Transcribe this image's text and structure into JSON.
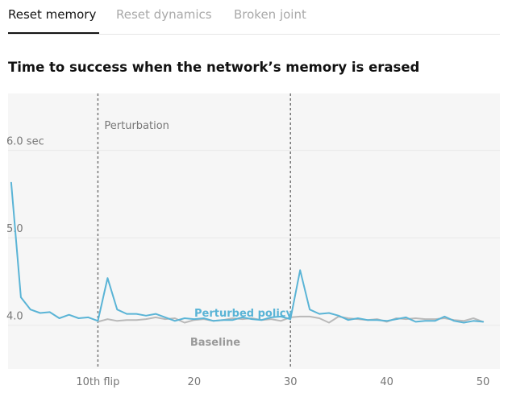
{
  "tabs": [
    {
      "label": "Reset memory",
      "active": true
    },
    {
      "label": "Reset dynamics",
      "active": false
    },
    {
      "label": "Broken joint",
      "active": false
    }
  ],
  "colors": {
    "policy": "#5ab4d6",
    "baseline": "#b9b9b9",
    "grid": "#e9e9e9",
    "plot_bg": "#f6f6f6",
    "marker": "#777777",
    "tick_text": "#777777"
  },
  "chart_data": {
    "type": "line",
    "title": "Time to success when the network’s memory is erased",
    "xlabel": "",
    "ylabel": "",
    "xlim": [
      0,
      51
    ],
    "ylim": [
      3.5,
      6.65
    ],
    "y_ticks": [
      {
        "value": 6.0,
        "label": "6.0 sec"
      },
      {
        "value": 5.0,
        "label": "5.0"
      },
      {
        "value": 4.0,
        "label": "4.0"
      }
    ],
    "x_ticks": [
      {
        "value": 10,
        "label": "10th flip"
      },
      {
        "value": 20,
        "label": "20"
      },
      {
        "value": 30,
        "label": "30"
      },
      {
        "value": 40,
        "label": "40"
      },
      {
        "value": 50,
        "label": "50"
      }
    ],
    "markers": [
      {
        "x": 10,
        "label": "Perturbation"
      },
      {
        "x": 30,
        "label": ""
      }
    ],
    "series": [
      {
        "name": "Perturbed policy",
        "x": [
          1,
          2,
          3,
          4,
          5,
          6,
          7,
          8,
          9,
          10,
          11,
          12,
          13,
          14,
          15,
          16,
          17,
          18,
          19,
          20,
          21,
          22,
          23,
          24,
          25,
          26,
          27,
          28,
          29,
          30,
          31,
          32,
          33,
          34,
          35,
          36,
          37,
          38,
          39,
          40,
          41,
          42,
          43,
          44,
          45,
          46,
          47,
          48,
          49,
          50
        ],
        "values": [
          5.63,
          4.32,
          4.18,
          4.14,
          4.15,
          4.08,
          4.12,
          4.08,
          4.09,
          4.05,
          4.54,
          4.18,
          4.13,
          4.13,
          4.11,
          4.13,
          4.09,
          4.05,
          4.08,
          4.07,
          4.08,
          4.05,
          4.06,
          4.06,
          4.09,
          4.07,
          4.06,
          4.09,
          4.1,
          4.07,
          4.63,
          4.18,
          4.13,
          4.14,
          4.11,
          4.06,
          4.08,
          4.06,
          4.06,
          4.05,
          4.07,
          4.09,
          4.04,
          4.05,
          4.05,
          4.1,
          4.05,
          4.03,
          4.05,
          4.04
        ]
      },
      {
        "name": "Baseline",
        "x": [
          10,
          11,
          12,
          13,
          14,
          15,
          16,
          17,
          18,
          19,
          20,
          21,
          22,
          23,
          24,
          25,
          26,
          27,
          28,
          29,
          30,
          31,
          32,
          33,
          34,
          35,
          36,
          37,
          38,
          39,
          40,
          41,
          42,
          43,
          44,
          45,
          46,
          47,
          48,
          49,
          50
        ],
        "values": [
          4.04,
          4.07,
          4.05,
          4.06,
          4.06,
          4.07,
          4.09,
          4.07,
          4.08,
          4.03,
          4.06,
          4.07,
          4.05,
          4.06,
          4.08,
          4.07,
          4.08,
          4.06,
          4.07,
          4.05,
          4.09,
          4.1,
          4.1,
          4.08,
          4.03,
          4.1,
          4.08,
          4.07,
          4.06,
          4.07,
          4.04,
          4.08,
          4.07,
          4.08,
          4.07,
          4.07,
          4.08,
          4.06,
          4.05,
          4.08,
          4.04
        ]
      }
    ]
  }
}
